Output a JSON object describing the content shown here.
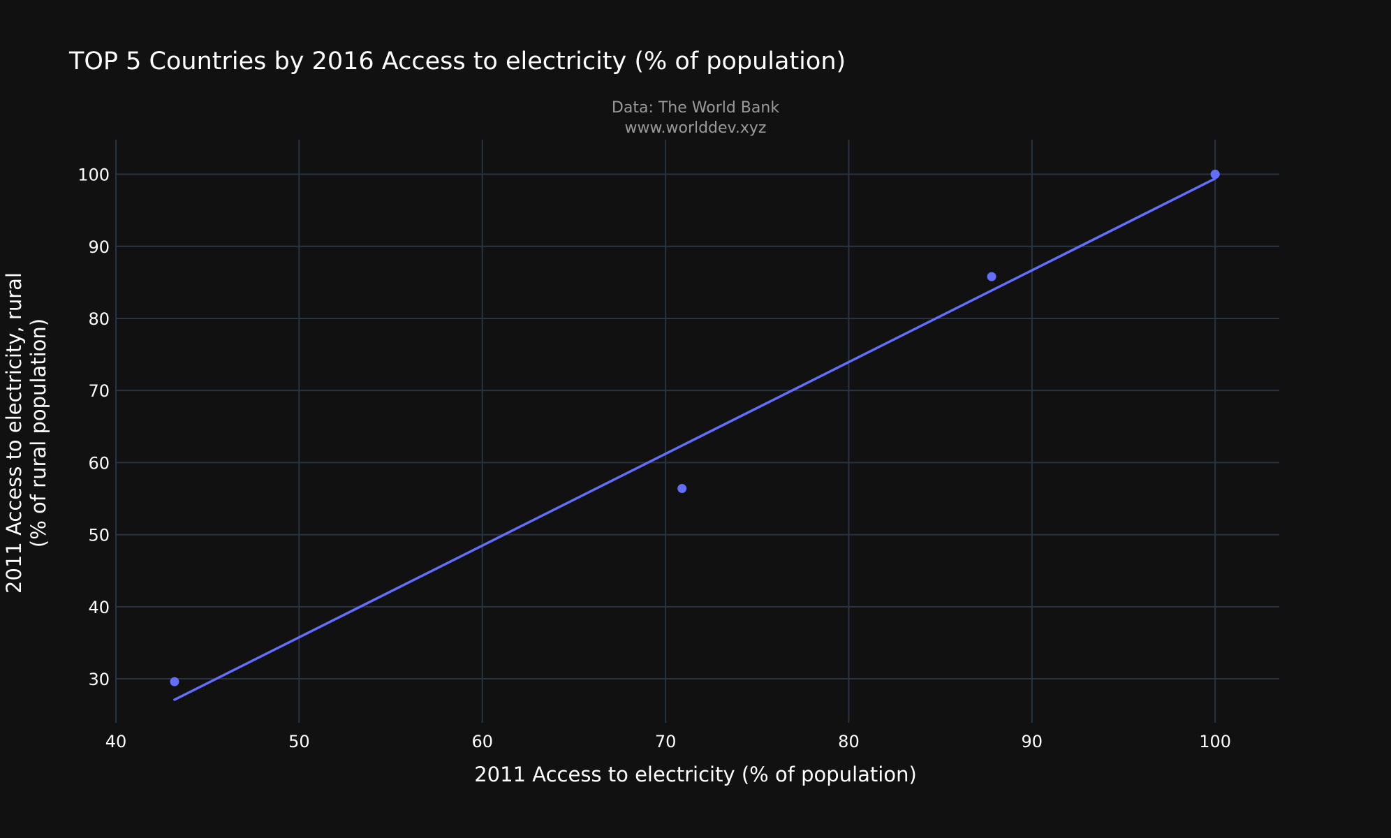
{
  "chart_data": {
    "type": "scatter",
    "title": "TOP 5 Countries by 2016 Access to electricity (% of population)",
    "subtitle": [
      "Data: The World Bank",
      "www.worlddev.xyz"
    ],
    "xlabel": "2011 Access to electricity (% of population)",
    "ylabel": [
      "2011 Access to electricity, rural",
      "(% of rural population)"
    ],
    "xlim": [
      40,
      103.5
    ],
    "ylim": [
      23.9,
      104.8
    ],
    "xticks": [
      40,
      50,
      60,
      70,
      80,
      90,
      100
    ],
    "yticks": [
      30,
      40,
      50,
      60,
      70,
      80,
      90,
      100
    ],
    "grid": true,
    "points": [
      {
        "x": 43.2,
        "y": 29.6
      },
      {
        "x": 70.9,
        "y": 56.4
      },
      {
        "x": 87.8,
        "y": 85.8
      },
      {
        "x": 100,
        "y": 100
      },
      {
        "x": 100,
        "y": 100
      }
    ],
    "trendline": {
      "x": [
        43.2,
        100
      ],
      "y": [
        27.1,
        99.4
      ]
    },
    "colors": {
      "background": "#111111",
      "grid": "#283442",
      "series": "#636efa",
      "text": "#ffffff",
      "subtitle": "#9a9a9a"
    }
  }
}
